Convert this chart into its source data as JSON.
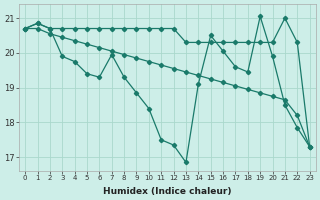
{
  "xlabel": "Humidex (Indice chaleur)",
  "bg_color": "#cdeee8",
  "grid_color": "#aad8cc",
  "line_color": "#1a7a6a",
  "xlim": [
    -0.5,
    23.5
  ],
  "ylim": [
    16.6,
    21.4
  ],
  "yticks": [
    17,
    18,
    19,
    20,
    21
  ],
  "xticks": [
    0,
    1,
    2,
    3,
    4,
    5,
    6,
    7,
    8,
    9,
    10,
    11,
    12,
    13,
    14,
    15,
    16,
    17,
    18,
    19,
    20,
    21,
    22,
    23
  ],
  "line1_x": [
    0,
    1,
    2,
    3,
    4,
    5,
    6,
    7,
    8,
    9,
    10,
    11,
    12,
    13,
    14,
    15,
    16,
    17,
    18,
    19,
    20,
    21,
    22,
    23
  ],
  "line1_y": [
    20.7,
    20.85,
    20.7,
    20.7,
    20.7,
    20.7,
    20.7,
    20.7,
    20.7,
    20.7,
    20.7,
    20.7,
    20.7,
    20.3,
    20.3,
    20.3,
    20.3,
    20.3,
    20.3,
    20.3,
    20.3,
    21.0,
    20.3,
    17.3
  ],
  "line2_x": [
    0,
    1,
    2,
    3,
    4,
    5,
    6,
    7,
    8,
    9,
    10,
    11,
    12,
    13,
    14,
    15,
    16,
    17,
    18,
    19,
    20,
    21,
    22,
    23
  ],
  "line2_y": [
    20.7,
    20.85,
    20.7,
    19.9,
    19.75,
    19.4,
    19.3,
    19.95,
    19.3,
    18.85,
    18.4,
    17.5,
    17.35,
    16.85,
    19.1,
    20.5,
    20.05,
    19.6,
    19.45,
    21.05,
    19.9,
    18.5,
    17.85,
    17.3
  ],
  "line3_x": [
    0,
    1,
    2,
    3,
    4,
    5,
    6,
    7,
    8,
    9,
    10,
    11,
    12,
    13,
    14,
    15,
    16,
    17,
    18,
    19,
    20,
    21,
    22,
    23
  ],
  "line3_y": [
    20.7,
    20.7,
    20.55,
    20.45,
    20.35,
    20.25,
    20.15,
    20.05,
    19.95,
    19.85,
    19.75,
    19.65,
    19.55,
    19.45,
    19.35,
    19.25,
    19.15,
    19.05,
    18.95,
    18.85,
    18.75,
    18.65,
    18.2,
    17.3
  ]
}
